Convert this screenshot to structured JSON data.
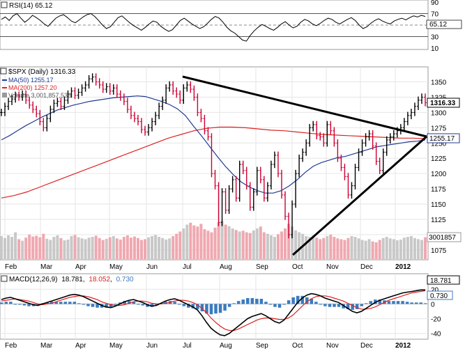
{
  "chart_data": [
    {
      "type": "line",
      "panel": "rsi",
      "legend": "RSI(14) 65.12",
      "current_value": "65.12",
      "y_ticks": [
        90,
        70,
        50,
        30,
        10
      ],
      "ylim": [
        10,
        90
      ],
      "reference_lines": [
        70,
        50,
        30
      ],
      "series": [
        {
          "values": [
            60,
            64,
            58,
            66,
            70,
            62,
            55,
            60,
            67,
            63,
            58,
            52,
            48,
            55,
            62,
            66,
            68,
            63,
            57,
            54,
            59,
            64,
            68,
            70,
            65,
            58,
            50,
            44,
            47,
            55,
            63,
            66,
            60,
            54,
            49,
            45,
            41,
            46,
            52,
            57,
            55,
            48,
            43,
            39,
            42,
            50,
            58,
            62,
            57,
            52,
            48,
            44,
            47,
            53,
            60,
            65,
            62,
            55,
            46,
            40,
            36,
            30,
            24,
            22,
            32,
            40,
            46,
            51,
            48,
            44,
            41,
            46,
            52,
            56,
            50,
            45,
            48,
            55,
            60,
            57,
            52,
            49,
            53,
            58,
            62,
            60,
            55,
            52,
            56,
            60,
            63,
            58,
            50,
            44,
            47,
            53,
            58,
            61,
            57,
            54,
            52,
            57,
            60,
            62,
            59,
            63,
            66,
            64,
            67,
            65
          ]
        }
      ]
    },
    {
      "type": "line",
      "panel": "price",
      "legend_title": "$SPX (Daily) 1316.33",
      "legend_ma50": "MA(50) 1255.17",
      "legend_ma200": "MA(200) 1257.20",
      "legend_volume": "Volume 3,001,857,536",
      "price_label": "1316.33",
      "ma_label": "1255.17",
      "volume_label": "3001857",
      "y_ticks": [
        1350,
        1325,
        1300,
        1275,
        1250,
        1225,
        1200,
        1175,
        1150,
        1125,
        1100,
        1075
      ],
      "ylim": [
        1060,
        1370
      ],
      "colors": {
        "up": "#000000",
        "down": "#cc0033",
        "ma50": "#1f3a93",
        "ma200": "#dd2222",
        "volume": "#c8c8c8",
        "volume_down": "#f0a8b0"
      },
      "series": [
        {
          "name": "Close",
          "values": [
            1300,
            1310,
            1318,
            1322,
            1328,
            1325,
            1330,
            1320,
            1312,
            1305,
            1298,
            1285,
            1275,
            1290,
            1305,
            1315,
            1318,
            1310,
            1320,
            1330,
            1335,
            1328,
            1333,
            1340,
            1345,
            1355,
            1358,
            1350,
            1345,
            1338,
            1342,
            1335,
            1340,
            1330,
            1325,
            1318,
            1305,
            1295,
            1290,
            1285,
            1272,
            1268,
            1275,
            1285,
            1295,
            1310,
            1320,
            1340,
            1345,
            1335,
            1330,
            1320,
            1340,
            1345,
            1338,
            1325,
            1300,
            1290,
            1270,
            1260,
            1200,
            1180,
            1120,
            1170,
            1140,
            1175,
            1190,
            1160,
            1215,
            1205,
            1180,
            1145,
            1170,
            1205,
            1190,
            1160,
            1180,
            1215,
            1230,
            1200,
            1165,
            1130,
            1100,
            1150,
            1200,
            1225,
            1235,
            1250,
            1275,
            1280,
            1262,
            1260,
            1250,
            1280,
            1270,
            1250,
            1225,
            1210,
            1195,
            1165,
            1180,
            1210,
            1235,
            1250,
            1260,
            1265,
            1245,
            1220,
            1205,
            1235,
            1255,
            1260,
            1265,
            1270,
            1275,
            1285,
            1295,
            1300,
            1310,
            1320,
            1325,
            1316
          ]
        },
        {
          "name": "MA(50)",
          "values": [
            1255,
            1262,
            1270,
            1278,
            1285,
            1292,
            1298,
            1304,
            1308,
            1312,
            1315,
            1318,
            1320,
            1322,
            1324,
            1325,
            1326,
            1327,
            1326,
            1322,
            1318,
            1313,
            1306,
            1295,
            1278,
            1262,
            1245,
            1228,
            1212,
            1198,
            1186,
            1178,
            1172,
            1168,
            1168,
            1172,
            1180,
            1190,
            1202,
            1212,
            1218,
            1222,
            1226,
            1228,
            1232,
            1236,
            1240,
            1244,
            1246,
            1248,
            1250,
            1252,
            1253,
            1255
          ]
        },
        {
          "name": "MA(200)",
          "values": [
            1160,
            1164,
            1170,
            1178,
            1186,
            1194,
            1202,
            1210,
            1218,
            1226,
            1234,
            1242,
            1250,
            1258,
            1264,
            1270,
            1274,
            1276,
            1276,
            1275,
            1273,
            1271,
            1270,
            1268,
            1266,
            1264,
            1263,
            1262,
            1261,
            1260,
            1259,
            1258,
            1258,
            1257
          ]
        },
        {
          "name": "Volume",
          "values": [
            60,
            55,
            62,
            58,
            70,
            52,
            48,
            56,
            64,
            59,
            61,
            57,
            66,
            53,
            50,
            58,
            62,
            55,
            49,
            51,
            60,
            63,
            57,
            54,
            52,
            56,
            58,
            61,
            55,
            50,
            53,
            57,
            60,
            54,
            51,
            58,
            62,
            56,
            59,
            55,
            50,
            52,
            57,
            60,
            63,
            58,
            55,
            51,
            54,
            60,
            66,
            72,
            80,
            90,
            95,
            88,
            85,
            92,
            78,
            74,
            70,
            82,
            96,
            100,
            90,
            86,
            80,
            76,
            72,
            74,
            70,
            68,
            75,
            80,
            85,
            70,
            66,
            62,
            58,
            65,
            72,
            80,
            92,
            85,
            75,
            70,
            66,
            60,
            58,
            62,
            56,
            52,
            55,
            60,
            64,
            58,
            54,
            52,
            50,
            55,
            60,
            58,
            54,
            50,
            48,
            52,
            46,
            44,
            50,
            55,
            58,
            54,
            52,
            49,
            51,
            56,
            58,
            60,
            55,
            52,
            50,
            57
          ]
        }
      ]
    },
    {
      "type": "line",
      "panel": "macd",
      "legend_title": "MACD(12,26,9)",
      "legend_macd": "18.781",
      "legend_signal": "18.052",
      "legend_hist": "0.730",
      "macd_label": "18.781",
      "hist_label": "0.730",
      "y_ticks": [
        20,
        0,
        -20,
        -40
      ],
      "ylim": [
        -45,
        25
      ],
      "x_labels": [
        "Feb",
        "Mar",
        "Apr",
        "May",
        "Jun",
        "Jul",
        "Aug",
        "Sep",
        "Oct",
        "Nov",
        "Dec",
        "2012"
      ],
      "series": [
        {
          "name": "MACD",
          "values": [
            6,
            8,
            9,
            7,
            5,
            3,
            1,
            -1,
            -2,
            0,
            2,
            4,
            6,
            8,
            10,
            12,
            13,
            12,
            10,
            7,
            4,
            1,
            -2,
            -4,
            -5,
            -3,
            0,
            3,
            5,
            6,
            4,
            2,
            -1,
            -3,
            -2,
            1,
            4,
            6,
            7,
            5,
            2,
            -1,
            -4,
            -8,
            -16,
            -25,
            -33,
            -38,
            -42,
            -43,
            -40,
            -35,
            -30,
            -25,
            -20,
            -17,
            -15,
            -13,
            -16,
            -20,
            -24,
            -26,
            -22,
            -14,
            -6,
            2,
            8,
            12,
            14,
            13,
            11,
            8,
            6,
            4,
            2,
            -2,
            -6,
            -10,
            -12,
            -10,
            -6,
            -2,
            2,
            5,
            7,
            9,
            11,
            13,
            15,
            16,
            17,
            18,
            19,
            19
          ]
        },
        {
          "name": "Signal",
          "values": [
            4,
            5,
            6,
            7,
            6,
            5,
            4,
            2,
            0,
            -1,
            0,
            1,
            3,
            5,
            7,
            9,
            10,
            11,
            11,
            10,
            8,
            6,
            3,
            1,
            -1,
            -2,
            -2,
            -1,
            1,
            3,
            4,
            4,
            3,
            1,
            0,
            0,
            1,
            2,
            4,
            5,
            5,
            4,
            2,
            -1,
            -6,
            -12,
            -19,
            -25,
            -30,
            -34,
            -36,
            -36,
            -34,
            -31,
            -28,
            -25,
            -22,
            -20,
            -19,
            -19,
            -20,
            -21,
            -21,
            -19,
            -15,
            -9,
            -3,
            3,
            7,
            10,
            11,
            11,
            10,
            8,
            6,
            4,
            1,
            -2,
            -5,
            -7,
            -7,
            -6,
            -4,
            -1,
            2,
            5,
            7,
            9,
            11,
            13,
            15,
            16,
            17,
            18
          ]
        },
        {
          "name": "Histogram",
          "values": [
            2,
            3,
            3,
            0,
            -1,
            -2,
            -3,
            -3,
            -2,
            1,
            2,
            3,
            3,
            3,
            3,
            3,
            3,
            1,
            -1,
            -3,
            -4,
            -5,
            -5,
            -5,
            -4,
            -1,
            2,
            4,
            4,
            3,
            0,
            -2,
            -4,
            -4,
            -2,
            1,
            3,
            4,
            3,
            0,
            -3,
            -5,
            -6,
            -7,
            -10,
            -13,
            -14,
            -13,
            -12,
            -9,
            -4,
            1,
            4,
            6,
            8,
            8,
            7,
            7,
            3,
            -1,
            -4,
            -5,
            -1,
            5,
            9,
            11,
            11,
            9,
            7,
            3,
            0,
            -3,
            -4,
            -4,
            -4,
            -6,
            -7,
            -8,
            -7,
            -3,
            1,
            4,
            6,
            6,
            5,
            4,
            4,
            4,
            4,
            3,
            2,
            2,
            2,
            1
          ]
        }
      ]
    }
  ]
}
